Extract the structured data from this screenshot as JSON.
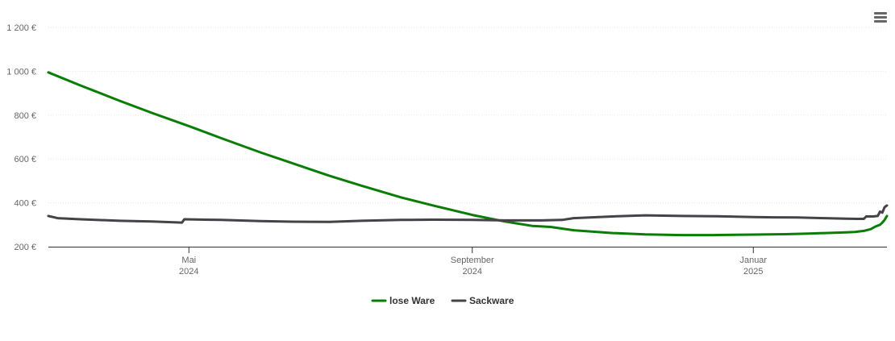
{
  "menu": {
    "icon": "hamburger-menu-icon"
  },
  "chart_data": {
    "type": "line",
    "ylim": [
      200,
      1200
    ],
    "yticks": [
      200,
      400,
      600,
      800,
      1000,
      1200
    ],
    "ytick_labels": [
      "200 €",
      "400 €",
      "600 €",
      "800 €",
      "1 000 €",
      "1 200 €"
    ],
    "xlim": [
      "2024-03-01",
      "2025-02-28"
    ],
    "xticks": [
      {
        "date": "2024-05-01",
        "label": "Mai",
        "year": "2024"
      },
      {
        "date": "2024-09-01",
        "label": "September",
        "year": "2024"
      },
      {
        "date": "2025-01-01",
        "label": "Januar",
        "year": "2025"
      }
    ],
    "grid": "horizontal",
    "legend_position": "bottom-center",
    "series": [
      {
        "name": "lose Ware",
        "color": "#0a7d05",
        "points": [
          [
            "2024-03-01",
            995
          ],
          [
            "2024-03-15",
            935
          ],
          [
            "2024-04-01",
            865
          ],
          [
            "2024-04-15",
            810
          ],
          [
            "2024-05-01",
            750
          ],
          [
            "2024-05-15",
            695
          ],
          [
            "2024-06-01",
            630
          ],
          [
            "2024-06-15",
            580
          ],
          [
            "2024-07-01",
            523
          ],
          [
            "2024-07-15",
            478
          ],
          [
            "2024-08-01",
            425
          ],
          [
            "2024-08-15",
            388
          ],
          [
            "2024-09-01",
            345
          ],
          [
            "2024-09-15",
            315
          ],
          [
            "2024-09-27",
            295
          ],
          [
            "2024-10-05",
            290
          ],
          [
            "2024-10-15",
            275
          ],
          [
            "2024-11-01",
            262
          ],
          [
            "2024-11-15",
            256
          ],
          [
            "2024-12-01",
            253
          ],
          [
            "2024-12-15",
            253
          ],
          [
            "2025-01-01",
            255
          ],
          [
            "2025-01-15",
            257
          ],
          [
            "2025-01-25",
            260
          ],
          [
            "2025-02-01",
            262
          ],
          [
            "2025-02-10",
            265
          ],
          [
            "2025-02-14",
            267
          ],
          [
            "2025-02-18",
            272
          ],
          [
            "2025-02-21",
            280
          ],
          [
            "2025-02-23",
            292
          ],
          [
            "2025-02-25",
            300
          ],
          [
            "2025-02-26",
            310
          ],
          [
            "2025-02-27",
            322
          ],
          [
            "2025-02-28",
            340
          ]
        ]
      },
      {
        "name": "Sackware",
        "color": "#434348",
        "points": [
          [
            "2024-03-01",
            340
          ],
          [
            "2024-03-05",
            330
          ],
          [
            "2024-03-15",
            325
          ],
          [
            "2024-04-01",
            318
          ],
          [
            "2024-04-15",
            315
          ],
          [
            "2024-04-28",
            310
          ],
          [
            "2024-04-29",
            325
          ],
          [
            "2024-05-15",
            322
          ],
          [
            "2024-06-01",
            317
          ],
          [
            "2024-06-15",
            314
          ],
          [
            "2024-07-01",
            313
          ],
          [
            "2024-07-15",
            318
          ],
          [
            "2024-08-01",
            322
          ],
          [
            "2024-08-15",
            323
          ],
          [
            "2024-09-01",
            322
          ],
          [
            "2024-09-15",
            320
          ],
          [
            "2024-10-01",
            320
          ],
          [
            "2024-10-10",
            322
          ],
          [
            "2024-10-15",
            330
          ],
          [
            "2024-11-01",
            338
          ],
          [
            "2024-11-15",
            343
          ],
          [
            "2024-12-01",
            340
          ],
          [
            "2024-12-15",
            339
          ],
          [
            "2025-01-01",
            335
          ],
          [
            "2025-01-10",
            334
          ],
          [
            "2025-01-20",
            333
          ],
          [
            "2025-02-01",
            330
          ],
          [
            "2025-02-10",
            328
          ],
          [
            "2025-02-15",
            327
          ],
          [
            "2025-02-18",
            327
          ],
          [
            "2025-02-19",
            338
          ],
          [
            "2025-02-22",
            338
          ],
          [
            "2025-02-24",
            340
          ],
          [
            "2025-02-25",
            360
          ],
          [
            "2025-02-26",
            355
          ],
          [
            "2025-02-27",
            380
          ],
          [
            "2025-02-28",
            388
          ]
        ]
      }
    ]
  }
}
